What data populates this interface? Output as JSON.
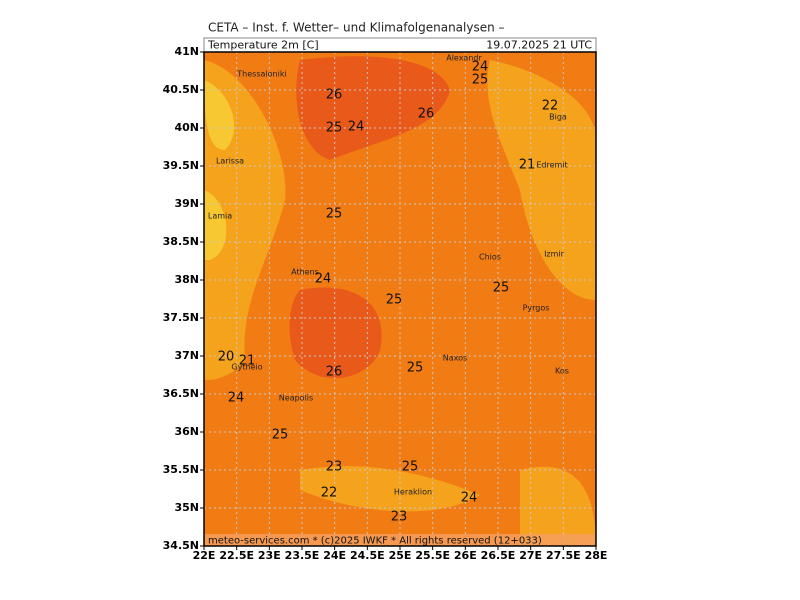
{
  "header": {
    "title": "CETA – Inst. f. Wetter– und Klimafolgenanalysen –",
    "variable": "Temperature 2m [C]",
    "valid_time": "19.07.2025 21 UTC",
    "footer": "meteo-services.com * (c)2025 IWKF * All rights reserved (12+033)"
  },
  "map": {
    "lat_ticks": [
      {
        "value": 41,
        "label": "41N"
      },
      {
        "value": 40.5,
        "label": "40.5N"
      },
      {
        "value": 40,
        "label": "40N"
      },
      {
        "value": 39.5,
        "label": "39.5N"
      },
      {
        "value": 39,
        "label": "39N"
      },
      {
        "value": 38.5,
        "label": "38.5N"
      },
      {
        "value": 38,
        "label": "38N"
      },
      {
        "value": 37.5,
        "label": "37.5N"
      },
      {
        "value": 37,
        "label": "37N"
      },
      {
        "value": 36.5,
        "label": "36.5N"
      },
      {
        "value": 36,
        "label": "36N"
      },
      {
        "value": 35.5,
        "label": "35.5N"
      },
      {
        "value": 35,
        "label": "35N"
      },
      {
        "value": 34.5,
        "label": "34.5N"
      }
    ],
    "lon_ticks": [
      {
        "value": 22,
        "label": "22E"
      },
      {
        "value": 22.5,
        "label": "22.5E"
      },
      {
        "value": 23,
        "label": "23E"
      },
      {
        "value": 23.5,
        "label": "23.5E"
      },
      {
        "value": 24,
        "label": "24E"
      },
      {
        "value": 24.5,
        "label": "24.5E"
      },
      {
        "value": 25,
        "label": "25E"
      },
      {
        "value": 25.5,
        "label": "25.5E"
      },
      {
        "value": 26,
        "label": "26E"
      },
      {
        "value": 26.5,
        "label": "26.5E"
      },
      {
        "value": 27,
        "label": "27E"
      },
      {
        "value": 27.5,
        "label": "27.5E"
      },
      {
        "value": 28,
        "label": "28E"
      }
    ],
    "places": [
      "Alexandr",
      "Thessaloniki",
      "Biga",
      "Larissa",
      "Edremit",
      "Lamia",
      "Chios",
      "Izmir",
      "Athens",
      "Pyrgos",
      "Naxos",
      "Gytheio",
      "Kos",
      "Neapolis",
      "Heraklion"
    ],
    "contour_labels": [
      24,
      25,
      26,
      22,
      25,
      24,
      26,
      21,
      25,
      24,
      25,
      25,
      20,
      21,
      26,
      25,
      24,
      25,
      23,
      25,
      22,
      24,
      23
    ]
  }
}
